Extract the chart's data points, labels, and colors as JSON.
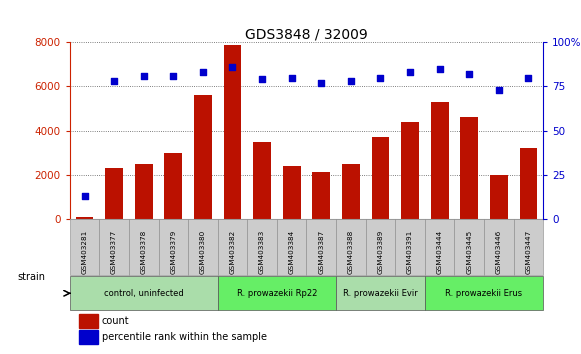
{
  "title": "GDS3848 / 32009",
  "samples": [
    "GSM403281",
    "GSM403377",
    "GSM403378",
    "GSM403379",
    "GSM403380",
    "GSM403382",
    "GSM403383",
    "GSM403384",
    "GSM403387",
    "GSM403388",
    "GSM403389",
    "GSM403391",
    "GSM403444",
    "GSM403445",
    "GSM403446",
    "GSM403447"
  ],
  "counts": [
    50,
    2300,
    2500,
    3000,
    5600,
    7900,
    3500,
    2400,
    2100,
    2500,
    3700,
    4400,
    5300,
    4600,
    2000,
    3200
  ],
  "percentiles": [
    13,
    78,
    81,
    81,
    83,
    86,
    79,
    80,
    77,
    78,
    80,
    83,
    85,
    82,
    73,
    80
  ],
  "bar_color": "#bb1100",
  "dot_color": "#0000cc",
  "ylim_left": [
    0,
    8000
  ],
  "ylim_right": [
    0,
    100
  ],
  "yticks_left": [
    0,
    2000,
    4000,
    6000,
    8000
  ],
  "yticks_right": [
    0,
    25,
    50,
    75,
    100
  ],
  "groups": [
    {
      "label": "control, uninfected",
      "start": 0,
      "end": 4,
      "color": "#aaddaa"
    },
    {
      "label": "R. prowazekii Rp22",
      "start": 5,
      "end": 8,
      "color": "#66ee66"
    },
    {
      "label": "R. prowazekii Evir",
      "start": 9,
      "end": 11,
      "color": "#aaddaa"
    },
    {
      "label": "R. prowazekii Erus",
      "start": 12,
      "end": 15,
      "color": "#66ee66"
    }
  ],
  "strain_label": "strain",
  "legend_count_label": "count",
  "legend_percentile_label": "percentile rank within the sample",
  "title_color": "#000000",
  "left_axis_color": "#cc2200",
  "right_axis_color": "#0000cc",
  "tick_area_color": "#cccccc",
  "bg_color": "#ffffff"
}
